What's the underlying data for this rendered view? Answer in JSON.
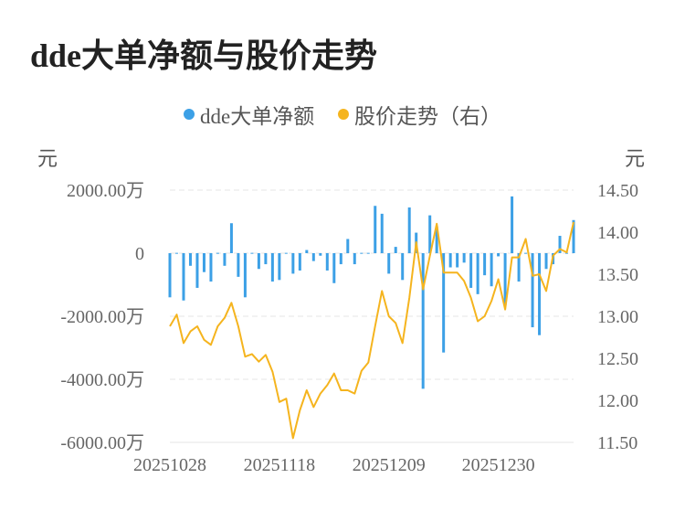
{
  "title": "dde大单净额与股价走势",
  "legend": [
    {
      "label": "dde大单净额",
      "color": "#3ca0e6"
    },
    {
      "label": "股价走势（右）",
      "color": "#f5b41e"
    }
  ],
  "chart_data": {
    "type": "bar+line",
    "left_axis": {
      "unit": "元",
      "ylim": [
        -6000,
        2000
      ],
      "ticks": [
        {
          "value": 2000,
          "label": "2000.00万"
        },
        {
          "value": 0,
          "label": "0"
        },
        {
          "value": -2000,
          "label": "-2000.00万"
        },
        {
          "value": -4000,
          "label": "-4000.00万"
        },
        {
          "value": -6000,
          "label": "-6000.00万"
        }
      ]
    },
    "right_axis": {
      "unit": "元",
      "ylim": [
        11.5,
        14.5
      ],
      "ticks": [
        {
          "value": 14.5,
          "label": "14.50"
        },
        {
          "value": 14.0,
          "label": "14.00"
        },
        {
          "value": 13.5,
          "label": "13.50"
        },
        {
          "value": 13.0,
          "label": "13.00"
        },
        {
          "value": 12.5,
          "label": "12.50"
        },
        {
          "value": 12.0,
          "label": "12.00"
        },
        {
          "value": 11.5,
          "label": "11.50"
        }
      ]
    },
    "x_labels": [
      {
        "index": 0,
        "label": "20251028"
      },
      {
        "index": 16,
        "label": "20251118"
      },
      {
        "index": 32,
        "label": "20251209"
      },
      {
        "index": 48,
        "label": "20251230"
      }
    ],
    "series": [
      {
        "name": "dde大单净额",
        "type": "bar",
        "unit": "万元",
        "values": [
          -1400,
          10,
          -1500,
          -400,
          -1100,
          -600,
          -900,
          10,
          -400,
          950,
          -750,
          -1400,
          10,
          -500,
          -350,
          -900,
          -850,
          10,
          -650,
          -550,
          100,
          -250,
          -80,
          -550,
          -950,
          -350,
          450,
          -350,
          10,
          10,
          1500,
          1250,
          -650,
          200,
          -850,
          1450,
          650,
          -4300,
          1200,
          850,
          -3150,
          -450,
          -450,
          -300,
          -1100,
          -1300,
          -700,
          -1050,
          -100,
          -1650,
          1800,
          -900,
          10,
          -2350,
          -2600,
          -500,
          -350,
          550,
          10,
          1050
        ]
      },
      {
        "name": "股价走势（右）",
        "type": "line",
        "values": [
          12.88,
          13.02,
          12.68,
          12.82,
          12.88,
          12.72,
          12.66,
          12.88,
          12.98,
          13.16,
          12.88,
          12.52,
          12.55,
          12.46,
          12.54,
          12.34,
          11.98,
          12.02,
          11.55,
          11.88,
          12.12,
          11.92,
          12.08,
          12.18,
          12.32,
          12.12,
          12.12,
          12.08,
          12.35,
          12.45,
          12.88,
          13.3,
          13.0,
          12.92,
          12.68,
          13.22,
          13.88,
          13.32,
          13.72,
          14.1,
          13.52,
          13.52,
          13.52,
          13.42,
          13.22,
          12.94,
          13.0,
          13.18,
          13.44,
          13.08,
          13.7,
          13.7,
          13.92,
          13.48,
          13.5,
          13.3,
          13.72,
          13.8,
          13.76,
          14.12
        ]
      }
    ]
  }
}
